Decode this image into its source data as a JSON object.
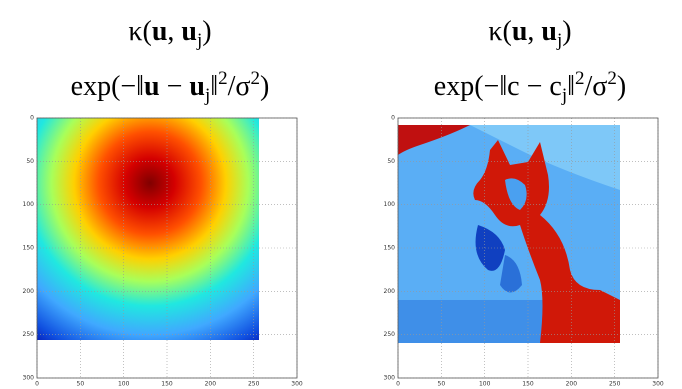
{
  "panels": [
    {
      "kernel": [
        "κ(",
        "u",
        ", ",
        "u",
        "j",
        ")"
      ],
      "formula": [
        "exp(−‖",
        "u",
        " − ",
        "u",
        "j",
        "‖",
        "2",
        "/σ",
        "2",
        ")"
      ],
      "xlim": [
        0,
        300
      ],
      "ylim": [
        0,
        300
      ],
      "xticks": [
        0,
        50,
        100,
        150,
        200,
        250,
        300
      ],
      "yticks": [
        0,
        50,
        100,
        150,
        200,
        250,
        300
      ]
    },
    {
      "kernel": [
        "κ(",
        "u",
        ", ",
        "u",
        "j",
        ")"
      ],
      "formula": [
        "exp(−‖c − c",
        "j",
        "‖",
        "2",
        "/σ",
        "2",
        ")"
      ],
      "xlim": [
        0,
        300
      ],
      "ylim": [
        0,
        300
      ],
      "xticks": [
        0,
        50,
        100,
        150,
        200,
        250,
        300
      ],
      "yticks": [
        0,
        50,
        100,
        150,
        200,
        250,
        300
      ]
    }
  ]
}
